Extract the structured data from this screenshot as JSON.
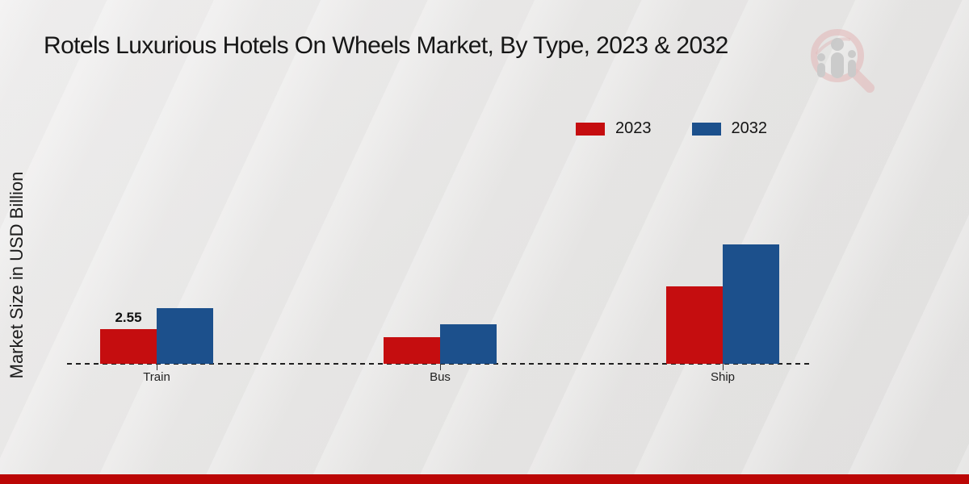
{
  "page": {
    "footer_color": "#bb0605"
  },
  "chart_data": {
    "type": "bar",
    "title": "Rotels Luxurious Hotels On Wheels Market, By Type, 2023 & 2032",
    "categories": [
      "Train",
      "Bus",
      "Ship"
    ],
    "series": [
      {
        "name": "2023",
        "color": "#c50d0f",
        "values": [
          2.55,
          1.95,
          5.7
        ]
      },
      {
        "name": "2032",
        "color": "#1c508c",
        "values": [
          4.1,
          2.9,
          8.8
        ]
      }
    ],
    "data_labels": [
      {
        "series": "2023",
        "category": "Train",
        "text": "2.55"
      }
    ],
    "xlabel": "",
    "ylabel": "Market Size in USD Billion",
    "ylim": [
      0,
      9.5
    ],
    "grid": false,
    "axis_style": "dashed-baseline-only",
    "legend_position": "top-right"
  },
  "icons": {
    "logo": "magnifying-glass-bar-chart-logo"
  }
}
